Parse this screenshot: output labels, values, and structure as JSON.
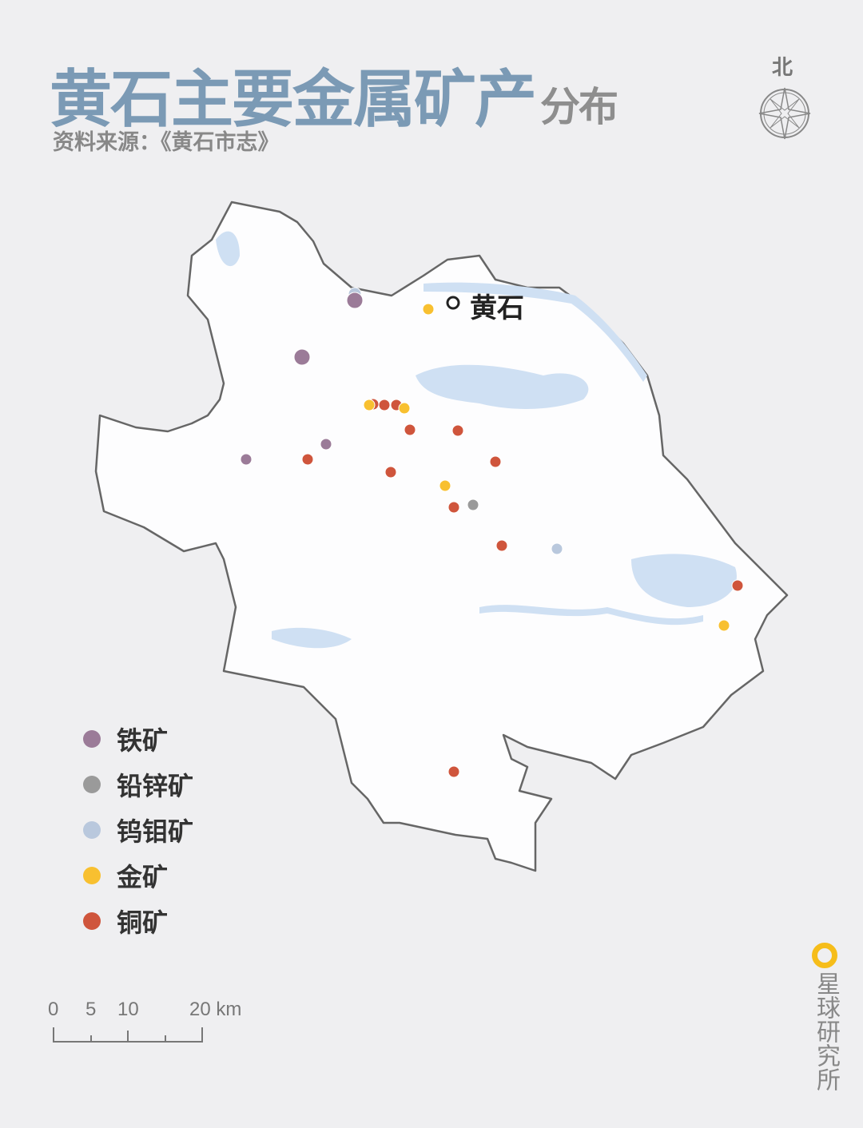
{
  "title": {
    "main": "黄石主要金属矿产",
    "sub": "分布"
  },
  "source": "资料来源：《黄石市志》",
  "compass": {
    "north_label": "北"
  },
  "city_label": "黄石",
  "legend": [
    {
      "key": "iron",
      "label": "铁矿",
      "color": "#9b7b98"
    },
    {
      "key": "leadzinc",
      "label": "铅锌矿",
      "color": "#9a9a9a"
    },
    {
      "key": "tungsten",
      "label": "钨钼矿",
      "color": "#b9c8dd"
    },
    {
      "key": "gold",
      "label": "金矿",
      "color": "#f8c030"
    },
    {
      "key": "copper",
      "label": "铜矿",
      "color": "#cf553c"
    }
  ],
  "scale": {
    "labels": [
      "0",
      "5",
      "10",
      "20 km"
    ]
  },
  "brand": "星球研究所",
  "colors": {
    "land": "#fdfdfe",
    "water": "#cfe0f3",
    "border": "#666666",
    "title": "#7b9ab5",
    "background": "#efeff1"
  }
}
